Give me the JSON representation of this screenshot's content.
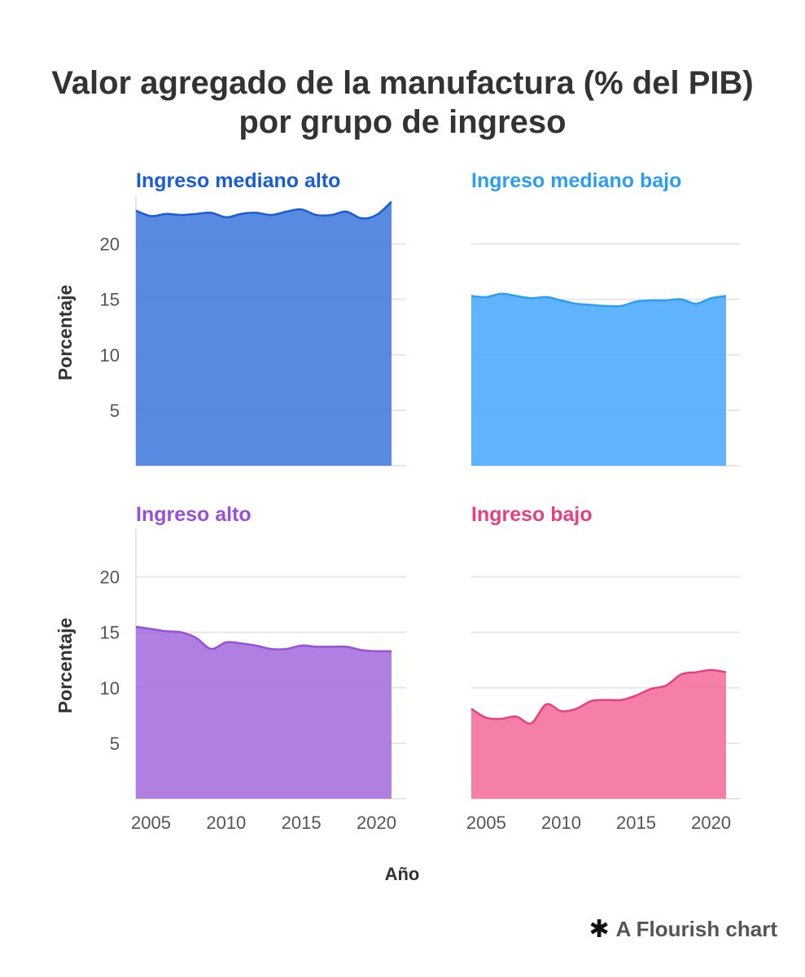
{
  "title": "Valor agregado de la manufactura (% del PIB) por grupo de ingreso",
  "footer": {
    "icon": "asterisk-icon",
    "text": "A Flourish chart"
  },
  "chart_data": {
    "type": "area",
    "title": "Valor agregado de la manufactura (% del PIB) por grupo de ingreso",
    "xlabel": "Año",
    "ylabel": "Porcentaje",
    "xlim": [
      2003.5,
      2022
    ],
    "ylim": [
      0,
      24
    ],
    "x_ticks": [
      "2005",
      "2010",
      "2015",
      "2020"
    ],
    "y_ticks": [
      "5",
      "10",
      "15",
      "20"
    ],
    "x": [
      2004,
      2005,
      2006,
      2007,
      2008,
      2009,
      2010,
      2011,
      2012,
      2013,
      2014,
      2015,
      2016,
      2017,
      2018,
      2019,
      2020,
      2021
    ],
    "series": [
      {
        "name": "Ingreso mediano alto",
        "color": "#1a5bd6",
        "fill": "#4a80e0",
        "values": [
          23.0,
          22.5,
          22.7,
          22.6,
          22.7,
          22.8,
          22.4,
          22.7,
          22.8,
          22.6,
          22.9,
          23.1,
          22.6,
          22.6,
          22.9,
          22.3,
          22.6,
          23.8
        ]
      },
      {
        "name": "Ingreso mediano bajo",
        "color": "#2b9ef4",
        "fill": "#55adfd",
        "values": [
          15.3,
          15.2,
          15.5,
          15.3,
          15.1,
          15.2,
          14.9,
          14.6,
          14.5,
          14.4,
          14.4,
          14.8,
          14.9,
          14.9,
          15.0,
          14.6,
          15.1,
          15.3
        ]
      },
      {
        "name": "Ingreso alto",
        "color": "#9a4fd8",
        "fill": "#a875e0",
        "values": [
          15.5,
          15.3,
          15.1,
          15.0,
          14.5,
          13.5,
          14.1,
          14.0,
          13.8,
          13.5,
          13.5,
          13.8,
          13.7,
          13.7,
          13.7,
          13.4,
          13.3,
          13.3
        ]
      },
      {
        "name": "Ingreso bajo",
        "color": "#e8407f",
        "fill": "#f474a0",
        "values": [
          8.1,
          7.3,
          7.2,
          7.4,
          6.8,
          8.5,
          7.9,
          8.1,
          8.8,
          8.9,
          8.9,
          9.3,
          9.9,
          10.2,
          11.2,
          11.4,
          11.6,
          11.4
        ]
      }
    ]
  }
}
